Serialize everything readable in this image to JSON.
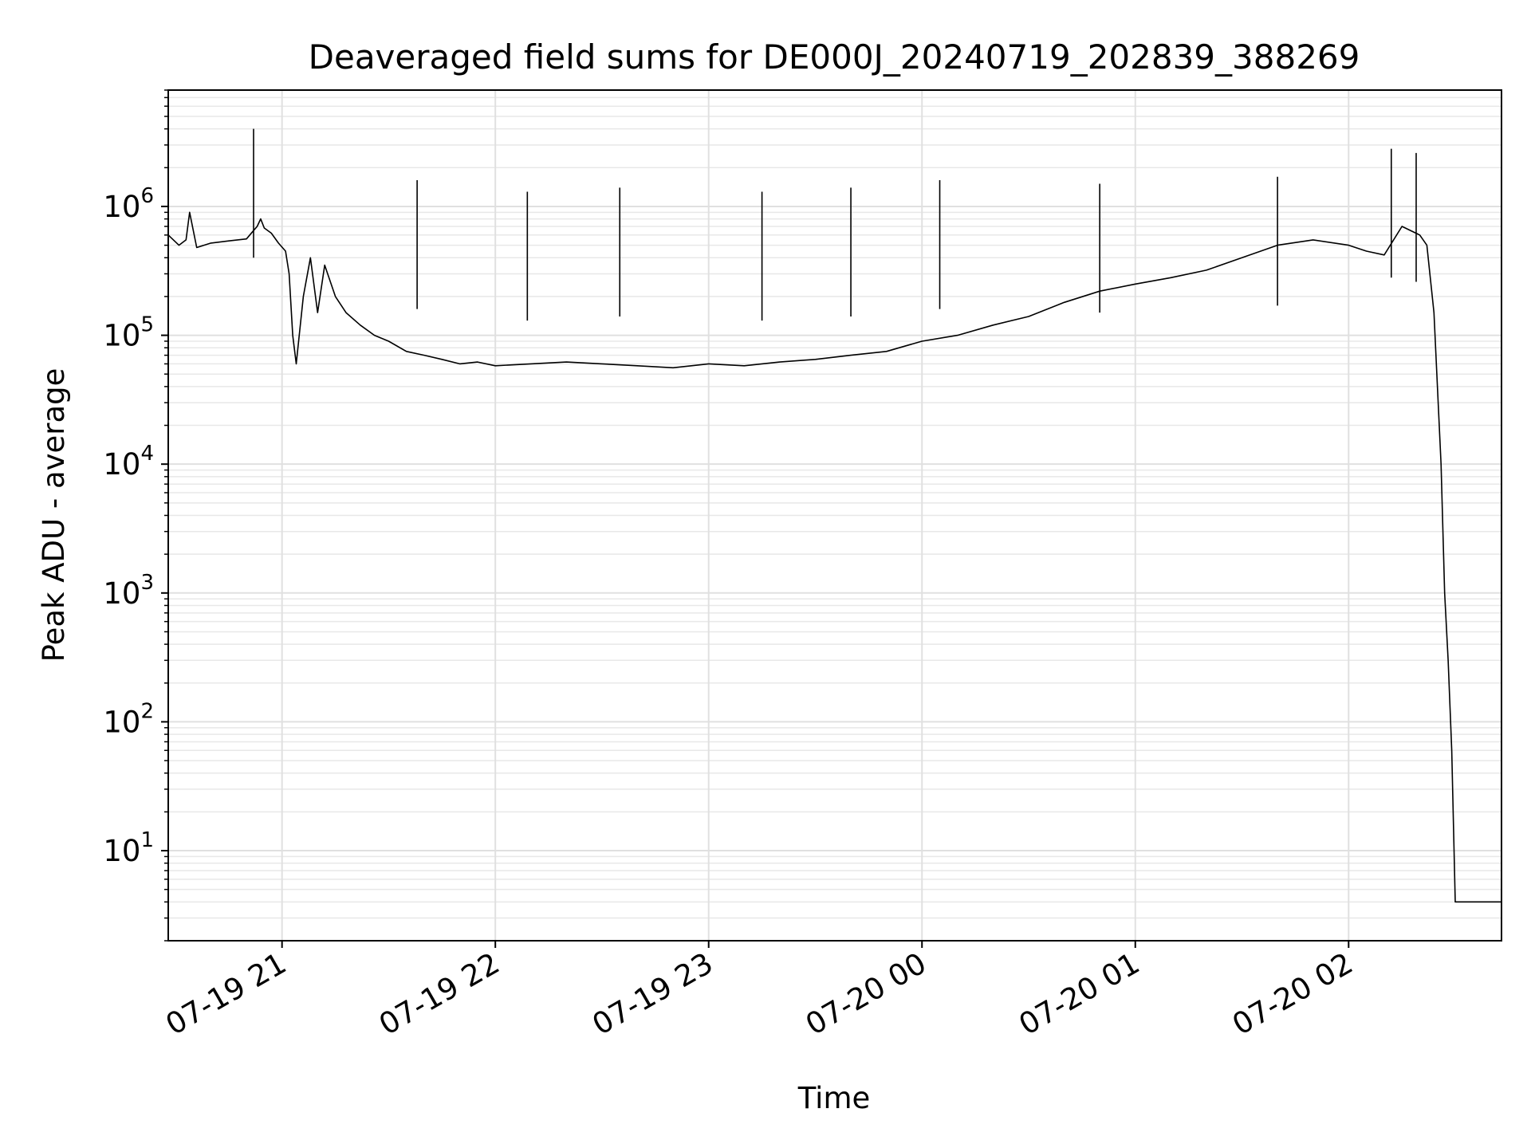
{
  "chart_data": {
    "type": "line",
    "title": "Deaveraged field sums for DE000J_20240719_202839_388269",
    "xlabel": "Time",
    "ylabel": "Peak ADU - average",
    "x_scale": "time",
    "y_scale": "log",
    "xlim": [
      "2024-07-19 20:28",
      "2024-07-20 02:43"
    ],
    "ylim": [
      2,
      8000000
    ],
    "grid": true,
    "grid_minor": true,
    "legend": "none",
    "line_color": "#000000",
    "x_ticks": [
      {
        "value": "2024-07-19 21:00",
        "label": "07-19 21"
      },
      {
        "value": "2024-07-19 22:00",
        "label": "07-19 22"
      },
      {
        "value": "2024-07-19 23:00",
        "label": "07-19 23"
      },
      {
        "value": "2024-07-20 00:00",
        "label": "07-20 00"
      },
      {
        "value": "2024-07-20 01:00",
        "label": "07-20 01"
      },
      {
        "value": "2024-07-20 02:00",
        "label": "07-20 02"
      }
    ],
    "y_ticks": [
      {
        "value": 10,
        "base": "10",
        "exp": "1"
      },
      {
        "value": 100,
        "base": "10",
        "exp": "2"
      },
      {
        "value": 1000,
        "base": "10",
        "exp": "3"
      },
      {
        "value": 10000,
        "base": "10",
        "exp": "4"
      },
      {
        "value": 100000,
        "base": "10",
        "exp": "5"
      },
      {
        "value": 1000000,
        "base": "10",
        "exp": "6"
      }
    ],
    "series": [
      {
        "x": [
          "2024-07-19 20:28",
          "2024-07-19 20:31",
          "2024-07-19 20:33",
          "2024-07-19 20:34",
          "2024-07-19 20:36",
          "2024-07-19 20:40",
          "2024-07-19 20:45",
          "2024-07-19 20:50",
          "2024-07-19 20:52",
          "2024-07-19 20:53",
          "2024-07-19 20:54",
          "2024-07-19 20:55",
          "2024-07-19 20:57",
          "2024-07-19 20:59",
          "2024-07-19 21:01",
          "2024-07-19 21:02",
          "2024-07-19 21:03",
          "2024-07-19 21:04",
          "2024-07-19 21:06",
          "2024-07-19 21:08",
          "2024-07-19 21:10",
          "2024-07-19 21:12",
          "2024-07-19 21:15",
          "2024-07-19 21:18",
          "2024-07-19 21:22",
          "2024-07-19 21:26",
          "2024-07-19 21:30",
          "2024-07-19 21:35",
          "2024-07-19 21:40",
          "2024-07-19 21:45",
          "2024-07-19 21:50",
          "2024-07-19 21:55",
          "2024-07-19 22:00",
          "2024-07-19 22:10",
          "2024-07-19 22:20",
          "2024-07-19 22:30",
          "2024-07-19 22:40",
          "2024-07-19 22:50",
          "2024-07-19 23:00",
          "2024-07-19 23:10",
          "2024-07-19 23:20",
          "2024-07-19 23:30",
          "2024-07-19 23:40",
          "2024-07-19 23:50",
          "2024-07-20 00:00",
          "2024-07-20 00:10",
          "2024-07-20 00:20",
          "2024-07-20 00:30",
          "2024-07-20 00:40",
          "2024-07-20 00:50",
          "2024-07-20 01:00",
          "2024-07-20 01:10",
          "2024-07-20 01:20",
          "2024-07-20 01:30",
          "2024-07-20 01:40",
          "2024-07-20 01:50",
          "2024-07-20 02:00",
          "2024-07-20 02:05",
          "2024-07-20 02:10",
          "2024-07-20 02:15",
          "2024-07-20 02:20",
          "2024-07-20 02:22",
          "2024-07-20 02:24",
          "2024-07-20 02:26",
          "2024-07-20 02:27",
          "2024-07-20 02:28",
          "2024-07-20 02:29",
          "2024-07-20 02:30",
          "2024-07-20 02:31",
          "2024-07-20 02:32",
          "2024-07-20 02:43"
        ],
        "y": [
          600000,
          500000,
          550000,
          900000,
          480000,
          520000,
          540000,
          560000,
          650000,
          700000,
          800000,
          680000,
          620000,
          520000,
          450000,
          300000,
          100000,
          60000,
          200000,
          400000,
          150000,
          350000,
          200000,
          150000,
          120000,
          100000,
          90000,
          75000,
          70000,
          65000,
          60000,
          62000,
          58000,
          60000,
          62000,
          60000,
          58000,
          56000,
          60000,
          58000,
          62000,
          65000,
          70000,
          75000,
          90000,
          100000,
          120000,
          140000,
          180000,
          220000,
          250000,
          280000,
          320000,
          400000,
          500000,
          550000,
          500000,
          450000,
          420000,
          700000,
          600000,
          500000,
          150000,
          10000,
          1000,
          300,
          60,
          4,
          4,
          4,
          4
        ]
      }
    ],
    "spikes": [
      {
        "x": "2024-07-19 20:52",
        "y": 4000000
      },
      {
        "x": "2024-07-19 21:38",
        "y": 1600000
      },
      {
        "x": "2024-07-19 22:09",
        "y": 1300000
      },
      {
        "x": "2024-07-19 22:35",
        "y": 1400000
      },
      {
        "x": "2024-07-19 23:15",
        "y": 1300000
      },
      {
        "x": "2024-07-19 23:40",
        "y": 1400000
      },
      {
        "x": "2024-07-20 00:05",
        "y": 1600000
      },
      {
        "x": "2024-07-20 00:50",
        "y": 1500000
      },
      {
        "x": "2024-07-20 01:40",
        "y": 1700000
      },
      {
        "x": "2024-07-20 02:12",
        "y": 2800000
      },
      {
        "x": "2024-07-20 02:19",
        "y": 2600000
      }
    ]
  }
}
